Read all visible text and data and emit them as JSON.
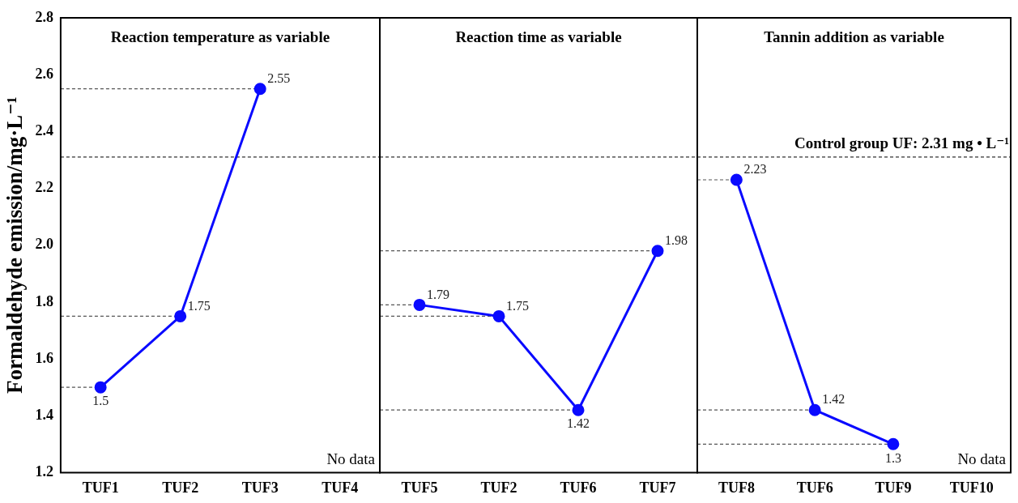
{
  "chart_data": [
    {
      "type": "line",
      "title": "Reaction temperature as variable",
      "ylabel": "Formaldehyde emission/mg·L⁻¹",
      "categories": [
        "TUF1",
        "TUF2",
        "TUF3",
        "TUF4"
      ],
      "series": [
        {
          "color": "#0a0aff",
          "values": [
            1.5,
            1.75,
            2.55,
            null
          ]
        }
      ],
      "ylim": [
        1.2,
        2.8
      ],
      "yticks": [
        1.2,
        1.4,
        1.6,
        1.8,
        {
          "value": 2,
          "label": "2.0"
        },
        2.2,
        2.4,
        2.6,
        2.8
      ],
      "marker": "circle",
      "data_labels": true,
      "annotations": [
        "No data"
      ],
      "ref_lines": [
        {
          "axis": "y",
          "value": 2.55,
          "color": "#555555",
          "line_style": "dashed"
        },
        {
          "axis": "y",
          "value": 1.75,
          "color": "#555555",
          "line_style": "dashed"
        },
        {
          "axis": "y",
          "value": 1.5,
          "color": "#555555",
          "line_style": "dashed"
        },
        {
          "axis": "y",
          "value": 2.31,
          "color": "#333333",
          "line_style": "dashed"
        }
      ]
    },
    {
      "type": "line",
      "title": "Reaction time as variable",
      "categories": [
        "TUF5",
        "TUF2",
        "TUF6",
        "TUF7"
      ],
      "series": [
        {
          "color": "#0a0aff",
          "values": [
            1.79,
            1.75,
            1.42,
            1.98
          ]
        }
      ],
      "ylim": [
        1.2,
        2.8
      ],
      "yticks": [
        1.2,
        1.4,
        1.6,
        1.8,
        2.0,
        2.2,
        2.4,
        2.6,
        2.8
      ],
      "tick_labels": "x",
      "marker": "circle",
      "data_labels": true,
      "ref_lines": [
        {
          "axis": "y",
          "value": 1.79,
          "color": "#555555",
          "line_style": "dashed"
        },
        {
          "axis": "y",
          "value": 1.75,
          "color": "#555555",
          "line_style": "dashed"
        },
        {
          "axis": "y",
          "value": 1.42,
          "color": "#555555",
          "line_style": "dashed"
        },
        {
          "axis": "y",
          "value": 1.98,
          "color": "#555555",
          "line_style": "dashed"
        },
        {
          "axis": "y",
          "value": 2.31,
          "color": "#333333",
          "line_style": "dashed"
        }
      ]
    },
    {
      "type": "line",
      "title": "Tannin addition as variable",
      "categories": [
        "TUF8",
        "TUF6",
        "TUF9",
        "TUF10"
      ],
      "series": [
        {
          "color": "#0a0aff",
          "values": [
            2.23,
            1.42,
            1.3,
            null
          ]
        }
      ],
      "ylim": [
        1.2,
        2.8
      ],
      "yticks": [
        1.2,
        1.4,
        1.6,
        1.8,
        2.0,
        2.2,
        2.4,
        2.6,
        2.8
      ],
      "tick_labels": "x",
      "marker": "circle",
      "data_labels": true,
      "annotations": [
        "No data"
      ],
      "ref_lines": [
        {
          "axis": "y",
          "value": 2.23,
          "color": "#555555",
          "line_style": "dashed"
        },
        {
          "axis": "y",
          "value": 1.42,
          "color": "#555555",
          "line_style": "dashed"
        },
        {
          "axis": "y",
          "value": 1.3,
          "color": "#555555",
          "line_style": "dashed"
        },
        {
          "axis": "y",
          "value": 2.31,
          "color": "#333333",
          "line_style": "dashed",
          "label": "Control group UF: 2.31 mg • L⁻¹"
        }
      ]
    }
  ]
}
